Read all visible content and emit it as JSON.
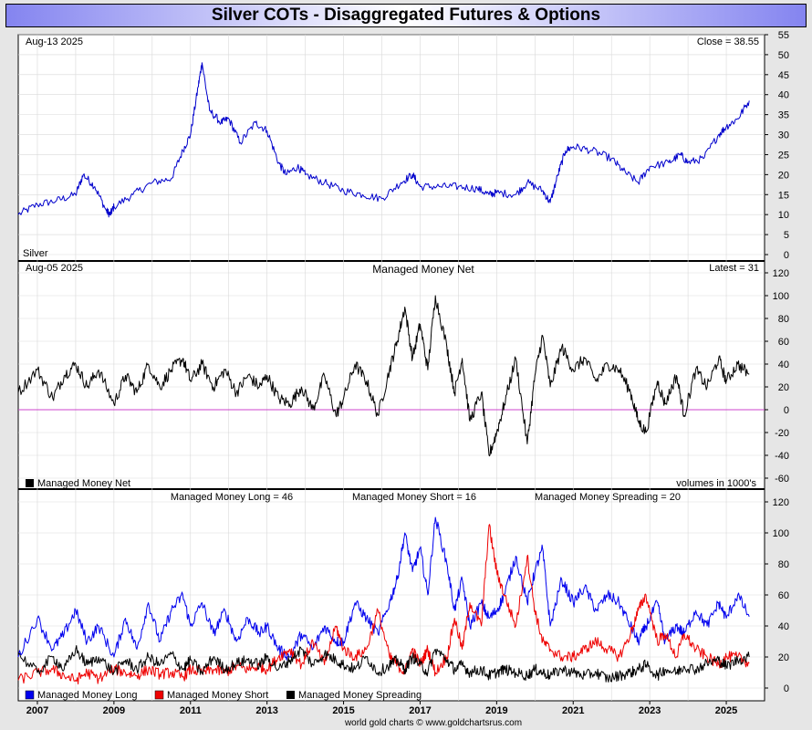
{
  "title": "Silver COTs - Disaggregated Futures & Options",
  "footer": "world gold charts © www.goldchartsrus.com",
  "colors": {
    "price": "#0000cc",
    "net": "#000000",
    "zero_line": "#cc44cc",
    "long": "#0000ee",
    "short": "#ee0000",
    "spreading": "#000000",
    "grid": "#d9d9d9"
  },
  "chart_data": [
    {
      "type": "line",
      "panel": "price",
      "date_label": "Aug-13  2025",
      "latest_label": "Close = 38.55",
      "instrument_label": "Silver",
      "ylim": [
        0,
        55
      ],
      "yticks": [
        "0",
        "5",
        "10",
        "15",
        "20",
        "25",
        "30",
        "35",
        "40",
        "45",
        "50",
        "55"
      ],
      "xlim": [
        2006.5,
        2026.0
      ],
      "series": [
        {
          "key": "price",
          "x": [
            2006.5,
            2007.0,
            2007.5,
            2008.0,
            2008.2,
            2008.5,
            2008.8,
            2008.9,
            2009.0,
            2009.5,
            2010.0,
            2010.5,
            2010.8,
            2011.0,
            2011.2,
            2011.3,
            2011.5,
            2011.8,
            2012.0,
            2012.3,
            2012.7,
            2013.0,
            2013.3,
            2013.5,
            2013.8,
            2014.0,
            2014.5,
            2015.0,
            2015.5,
            2016.0,
            2016.5,
            2016.8,
            2017.0,
            2017.5,
            2018.0,
            2018.5,
            2018.8,
            2019.0,
            2019.5,
            2019.8,
            2020.2,
            2020.4,
            2020.6,
            2020.8,
            2021.0,
            2021.5,
            2022.0,
            2022.3,
            2022.7,
            2023.0,
            2023.5,
            2023.8,
            2024.0,
            2024.4,
            2024.8,
            2025.0,
            2025.3,
            2025.6
          ],
          "values": [
            10,
            12.5,
            13.5,
            15,
            20,
            17,
            11,
            10,
            12,
            15,
            18,
            19,
            26,
            30,
            42,
            48,
            36,
            33,
            34,
            28,
            33,
            31,
            23,
            20,
            22,
            20,
            18,
            16,
            15,
            14,
            18,
            20,
            17,
            17,
            17,
            16.5,
            15,
            15.5,
            15,
            18,
            16,
            13,
            20,
            26,
            27,
            26,
            24,
            21,
            18,
            22,
            23,
            25,
            23,
            24,
            30,
            32,
            34,
            38.5
          ]
        }
      ]
    },
    {
      "type": "line",
      "panel": "net",
      "date_label": "Aug-05  2025",
      "subtitle": "Managed Money Net",
      "latest_label": "Latest = 31",
      "legend_label": "Managed Money Net",
      "units_label": "volumes in 1000's",
      "ylim": [
        -60,
        120
      ],
      "yticks": [
        "-60",
        "-40",
        "-20",
        "0",
        "20",
        "40",
        "60",
        "80",
        "100",
        "120"
      ],
      "xlim": [
        2006.5,
        2026.0
      ],
      "series": [
        {
          "key": "net",
          "x": [
            2006.5,
            2007.0,
            2007.4,
            2007.7,
            2008.0,
            2008.3,
            2008.6,
            2009.0,
            2009.3,
            2009.6,
            2009.9,
            2010.2,
            2010.5,
            2010.8,
            2011.0,
            2011.3,
            2011.6,
            2011.9,
            2012.2,
            2012.5,
            2012.8,
            2013.0,
            2013.3,
            2013.6,
            2013.9,
            2014.2,
            2014.5,
            2014.8,
            2015.0,
            2015.3,
            2015.6,
            2015.9,
            2016.2,
            2016.4,
            2016.6,
            2016.8,
            2017.0,
            2017.2,
            2017.4,
            2017.7,
            2017.9,
            2018.1,
            2018.3,
            2018.6,
            2018.8,
            2019.0,
            2019.2,
            2019.5,
            2019.8,
            2020.0,
            2020.2,
            2020.4,
            2020.7,
            2021.0,
            2021.3,
            2021.6,
            2021.9,
            2022.2,
            2022.5,
            2022.7,
            2022.9,
            2023.2,
            2023.4,
            2023.7,
            2023.9,
            2024.2,
            2024.5,
            2024.8,
            2025.0,
            2025.3,
            2025.6
          ],
          "values": [
            15,
            35,
            10,
            30,
            40,
            20,
            35,
            5,
            30,
            15,
            40,
            20,
            35,
            45,
            25,
            40,
            20,
            35,
            15,
            30,
            20,
            30,
            10,
            5,
            20,
            0,
            30,
            -5,
            10,
            40,
            25,
            -5,
            35,
            60,
            90,
            45,
            75,
            35,
            100,
            55,
            15,
            45,
            -10,
            15,
            -40,
            -20,
            5,
            45,
            -30,
            30,
            65,
            20,
            55,
            35,
            45,
            25,
            40,
            35,
            15,
            -10,
            -20,
            25,
            5,
            30,
            -5,
            35,
            20,
            45,
            25,
            40,
            31
          ]
        }
      ]
    },
    {
      "type": "line",
      "panel": "positions",
      "long_label": "Managed Money Long = 46",
      "short_label": "Managed Money Short = 16",
      "spreading_label": "Managed Money Spreading = 20",
      "ylim": [
        0,
        120
      ],
      "yticks": [
        "0",
        "20",
        "40",
        "60",
        "80",
        "100",
        "120"
      ],
      "xlim": [
        2006.5,
        2026.0
      ],
      "x_tick_labels": [
        "2007",
        "2009",
        "2011",
        "2013",
        "2015",
        "2017",
        "2019",
        "2021",
        "2023",
        "2025"
      ],
      "x_tick_values": [
        2007,
        2009,
        2011,
        2013,
        2015,
        2017,
        2019,
        2021,
        2023,
        2025
      ],
      "series": [
        {
          "key": "long",
          "name": "Managed Money Long",
          "x": [
            2006.5,
            2007.0,
            2007.4,
            2007.7,
            2008.0,
            2008.3,
            2008.6,
            2009.0,
            2009.3,
            2009.6,
            2009.9,
            2010.2,
            2010.5,
            2010.8,
            2011.0,
            2011.3,
            2011.6,
            2011.9,
            2012.2,
            2012.5,
            2012.8,
            2013.0,
            2013.3,
            2013.6,
            2013.9,
            2014.2,
            2014.5,
            2014.8,
            2015.0,
            2015.3,
            2015.6,
            2015.9,
            2016.2,
            2016.4,
            2016.6,
            2016.8,
            2017.0,
            2017.2,
            2017.4,
            2017.7,
            2017.9,
            2018.1,
            2018.3,
            2018.6,
            2018.8,
            2019.0,
            2019.2,
            2019.5,
            2019.8,
            2020.0,
            2020.2,
            2020.4,
            2020.7,
            2021.0,
            2021.3,
            2021.6,
            2021.9,
            2022.2,
            2022.5,
            2022.7,
            2022.9,
            2023.2,
            2023.4,
            2023.7,
            2023.9,
            2024.2,
            2024.5,
            2024.8,
            2025.0,
            2025.3,
            2025.6
          ],
          "values": [
            20,
            45,
            25,
            35,
            50,
            30,
            40,
            20,
            45,
            25,
            55,
            30,
            50,
            60,
            40,
            55,
            35,
            50,
            30,
            45,
            35,
            40,
            25,
            20,
            35,
            25,
            40,
            30,
            30,
            55,
            45,
            35,
            55,
            70,
            100,
            75,
            90,
            60,
            110,
            80,
            50,
            70,
            40,
            55,
            45,
            50,
            60,
            85,
            55,
            75,
            90,
            40,
            70,
            55,
            65,
            50,
            60,
            55,
            40,
            30,
            40,
            55,
            30,
            40,
            35,
            50,
            40,
            55,
            45,
            60,
            46
          ]
        },
        {
          "key": "short",
          "name": "Managed Money Short",
          "x": [
            2006.5,
            2007.0,
            2007.4,
            2007.7,
            2008.0,
            2008.3,
            2008.6,
            2009.0,
            2009.3,
            2009.6,
            2009.9,
            2010.2,
            2010.5,
            2010.8,
            2011.0,
            2011.3,
            2011.6,
            2011.9,
            2012.2,
            2012.5,
            2012.8,
            2013.0,
            2013.3,
            2013.6,
            2013.9,
            2014.2,
            2014.5,
            2014.8,
            2015.0,
            2015.3,
            2015.6,
            2015.9,
            2016.2,
            2016.4,
            2016.6,
            2016.8,
            2017.0,
            2017.2,
            2017.4,
            2017.7,
            2017.9,
            2018.1,
            2018.3,
            2018.6,
            2018.8,
            2019.0,
            2019.2,
            2019.5,
            2019.8,
            2020.0,
            2020.2,
            2020.4,
            2020.7,
            2021.0,
            2021.3,
            2021.6,
            2021.9,
            2022.2,
            2022.5,
            2022.7,
            2022.9,
            2023.2,
            2023.4,
            2023.7,
            2023.9,
            2024.2,
            2024.5,
            2024.8,
            2025.0,
            2025.3,
            2025.6
          ],
          "values": [
            5,
            10,
            12,
            8,
            5,
            10,
            6,
            12,
            10,
            8,
            12,
            9,
            10,
            7,
            12,
            10,
            12,
            10,
            14,
            12,
            14,
            12,
            20,
            25,
            15,
            30,
            15,
            40,
            25,
            20,
            25,
            50,
            20,
            15,
            10,
            25,
            15,
            25,
            10,
            20,
            45,
            25,
            55,
            40,
            105,
            75,
            60,
            40,
            85,
            50,
            30,
            25,
            20,
            20,
            25,
            30,
            25,
            20,
            35,
            50,
            60,
            30,
            35,
            20,
            35,
            25,
            20,
            15,
            20,
            20,
            16
          ]
        },
        {
          "key": "spreading",
          "name": "Managed Money Spreading",
          "x": [
            2006.5,
            2007.0,
            2007.4,
            2007.7,
            2008.0,
            2008.3,
            2008.6,
            2009.0,
            2009.3,
            2009.6,
            2009.9,
            2010.2,
            2010.5,
            2010.8,
            2011.0,
            2011.3,
            2011.6,
            2011.9,
            2012.2,
            2012.5,
            2012.8,
            2013.0,
            2013.3,
            2013.6,
            2013.9,
            2014.2,
            2014.5,
            2014.8,
            2015.0,
            2015.3,
            2015.6,
            2015.9,
            2016.2,
            2016.4,
            2016.6,
            2016.8,
            2017.0,
            2017.2,
            2017.4,
            2017.7,
            2017.9,
            2018.1,
            2018.3,
            2018.6,
            2018.8,
            2019.0,
            2019.2,
            2019.5,
            2019.8,
            2020.0,
            2020.2,
            2020.4,
            2020.7,
            2021.0,
            2021.3,
            2021.6,
            2021.9,
            2022.2,
            2022.5,
            2022.7,
            2022.9,
            2023.2,
            2023.4,
            2023.7,
            2023.9,
            2024.2,
            2024.5,
            2024.8,
            2025.0,
            2025.3,
            2025.6
          ],
          "values": [
            22,
            10,
            20,
            12,
            25,
            15,
            20,
            10,
            18,
            12,
            20,
            15,
            22,
            12,
            18,
            10,
            20,
            12,
            16,
            18,
            15,
            20,
            12,
            18,
            25,
            15,
            22,
            18,
            15,
            12,
            20,
            10,
            15,
            18,
            12,
            20,
            15,
            10,
            25,
            18,
            12,
            15,
            10,
            12,
            8,
            10,
            12,
            10,
            8,
            12,
            10,
            8,
            12,
            10,
            8,
            10,
            6,
            8,
            10,
            12,
            15,
            8,
            12,
            10,
            14,
            12,
            16,
            18,
            14,
            18,
            20
          ]
        }
      ]
    }
  ]
}
